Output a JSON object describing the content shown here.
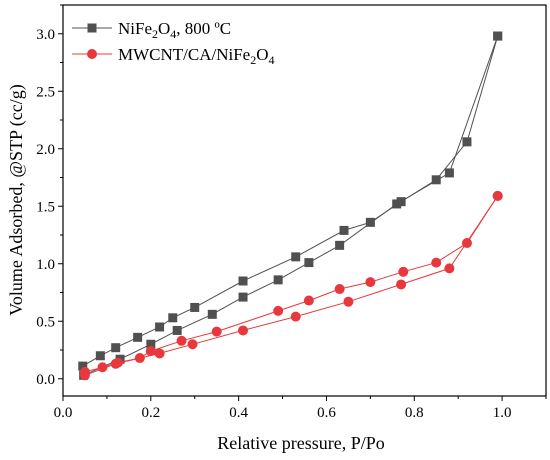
{
  "chart_data": {
    "type": "scatter",
    "xlabel": "Relative pressure, P/Po",
    "ylabel": "Volume Adsorbed, @STP (cc/g)",
    "xlim": [
      0.0,
      1.1
    ],
    "ylim": [
      -0.15,
      3.25
    ],
    "xticks": [
      "0.0",
      "0.2",
      "0.4",
      "0.6",
      "0.8",
      "1.0"
    ],
    "yticks": [
      "0.0",
      "0.5",
      "1.0",
      "1.5",
      "2.0",
      "2.5",
      "3.0"
    ],
    "grid": false,
    "legend_position": "top-left",
    "series": [
      {
        "name_parts": {
          "prefix": "NiFe",
          "sub1": "2",
          "mid": "O",
          "sub2": "4",
          "suffix": ", 800 ºC"
        },
        "color": "#505050",
        "marker": "square",
        "adsorption": [
          [
            0.047,
            0.03
          ],
          [
            0.13,
            0.17
          ],
          [
            0.2,
            0.3
          ],
          [
            0.26,
            0.42
          ],
          [
            0.34,
            0.56
          ],
          [
            0.41,
            0.71
          ],
          [
            0.49,
            0.86
          ],
          [
            0.56,
            1.01
          ],
          [
            0.63,
            1.16
          ],
          [
            0.76,
            1.52
          ],
          [
            0.88,
            1.79
          ],
          [
            0.99,
            2.98
          ]
        ],
        "desorption": [
          [
            0.99,
            2.98
          ],
          [
            0.92,
            2.06
          ],
          [
            0.85,
            1.73
          ],
          [
            0.77,
            1.54
          ],
          [
            0.7,
            1.36
          ],
          [
            0.64,
            1.29
          ],
          [
            0.53,
            1.06
          ],
          [
            0.41,
            0.85
          ],
          [
            0.3,
            0.62
          ],
          [
            0.25,
            0.53
          ],
          [
            0.22,
            0.45
          ],
          [
            0.17,
            0.36
          ],
          [
            0.12,
            0.27
          ],
          [
            0.085,
            0.2
          ],
          [
            0.045,
            0.11
          ]
        ]
      },
      {
        "name_parts": {
          "prefix": "MWCNT/CA/NiFe",
          "sub1": "2",
          "mid": "O",
          "sub2": "4",
          "suffix": ""
        },
        "color": "#e8383d",
        "marker": "circle",
        "adsorption": [
          [
            0.05,
            0.03
          ],
          [
            0.12,
            0.13
          ],
          [
            0.22,
            0.22
          ],
          [
            0.295,
            0.3
          ],
          [
            0.41,
            0.42
          ],
          [
            0.53,
            0.54
          ],
          [
            0.65,
            0.67
          ],
          [
            0.77,
            0.82
          ],
          [
            0.88,
            0.96
          ],
          [
            0.99,
            1.59
          ]
        ],
        "desorption": [
          [
            0.99,
            1.59
          ],
          [
            0.92,
            1.18
          ],
          [
            0.85,
            1.01
          ],
          [
            0.775,
            0.93
          ],
          [
            0.7,
            0.84
          ],
          [
            0.63,
            0.78
          ],
          [
            0.56,
            0.68
          ],
          [
            0.49,
            0.59
          ],
          [
            0.35,
            0.41
          ],
          [
            0.27,
            0.33
          ],
          [
            0.2,
            0.24
          ],
          [
            0.175,
            0.18
          ],
          [
            0.125,
            0.14
          ],
          [
            0.09,
            0.1
          ],
          [
            0.05,
            0.06
          ]
        ]
      }
    ]
  }
}
